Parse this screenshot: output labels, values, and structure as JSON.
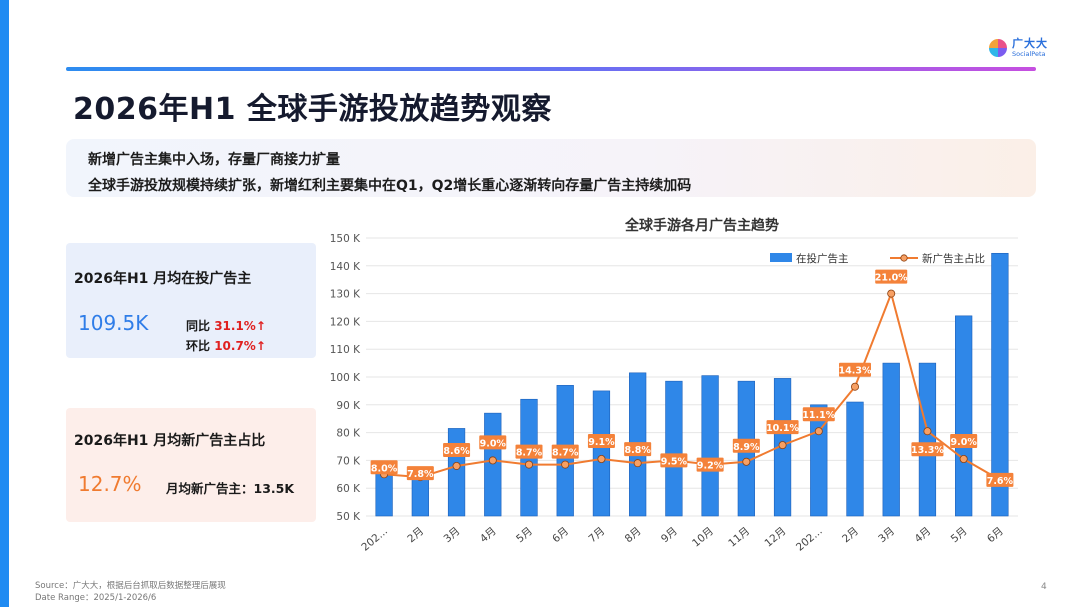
{
  "page": {
    "title": "2026年H1 全球手游投放趋势观察",
    "summary": [
      "新增广告主集中入场，存量厂商接力扩量",
      "全球手游投放规模持续扩张，新增红利主要集中在Q1，Q2增长重心逐渐转向存量广告主持续加码"
    ],
    "page_number": "4",
    "accent_colors": {
      "blue": "#1f8bf2",
      "bar": "#2f87e8",
      "line": "#f07b30",
      "red": "#e02020"
    }
  },
  "logo": {
    "name_cn": "广大大",
    "name_en": "SocialPeta"
  },
  "card_active": {
    "title": "2026年H1 月均在投广告主",
    "value": "109.5K",
    "yoy_label": "同比",
    "yoy_value": "31.1%↑",
    "mom_label": "环比",
    "mom_value": "10.7%↑"
  },
  "card_new": {
    "title": "2026年H1 月均新广告主占比",
    "value": "12.7%",
    "avg_new": "月均新广告主：13.5K"
  },
  "chart_data": {
    "type": "bar",
    "title": "全球手游各月广告主趋势",
    "categories": [
      "202...",
      "2月",
      "3月",
      "4月",
      "5月",
      "6月",
      "7月",
      "8月",
      "9月",
      "10月",
      "11月",
      "12月",
      "202...",
      "2月",
      "3月",
      "4月",
      "5月",
      "6月"
    ],
    "series": [
      {
        "name": "在投广告主",
        "type": "bar",
        "values": [
          69,
          67,
          81.5,
          87,
          92,
          97,
          95,
          101.5,
          98.5,
          100.5,
          98.5,
          99.5,
          90,
          91,
          105,
          105,
          122,
          144.5
        ]
      },
      {
        "name": "新广告主占比",
        "type": "line",
        "values": [
          8.0,
          7.8,
          8.6,
          9.0,
          8.7,
          8.7,
          9.1,
          8.8,
          9.5,
          9.2,
          8.9,
          10.1,
          11.1,
          14.3,
          21.0,
          13.3,
          9.0,
          7.6
        ],
        "labels": [
          "8.0%",
          "7.8%",
          "8.6%",
          "9.0%",
          "8.7%",
          "8.7%",
          "9.1%",
          "8.8%",
          "9.5%",
          "9.2%",
          "8.9%",
          "10.1%",
          "11.1%",
          "14.3%",
          "21.0%",
          "13.3%",
          "9.0%",
          "7.6%"
        ],
        "point_y_values": [
          65,
          64,
          68,
          70,
          68.5,
          68.5,
          70.5,
          69,
          70,
          68.5,
          69.5,
          75.5,
          80.5,
          96.5,
          130,
          80.5,
          70.5,
          63
        ]
      }
    ],
    "y_ticks": [
      "50 K",
      "60 K",
      "70 K",
      "80 K",
      "90 K",
      "100 K",
      "110 K",
      "120 K",
      "130 K",
      "140 K",
      "150 K"
    ],
    "ylim": [
      50,
      150
    ],
    "legend_position": "top-right",
    "grid": true
  },
  "footer": {
    "source": "Source：广大大，根据后台抓取后数据整理后展现",
    "date_range": "Date Range：2025/1-2026/6"
  }
}
